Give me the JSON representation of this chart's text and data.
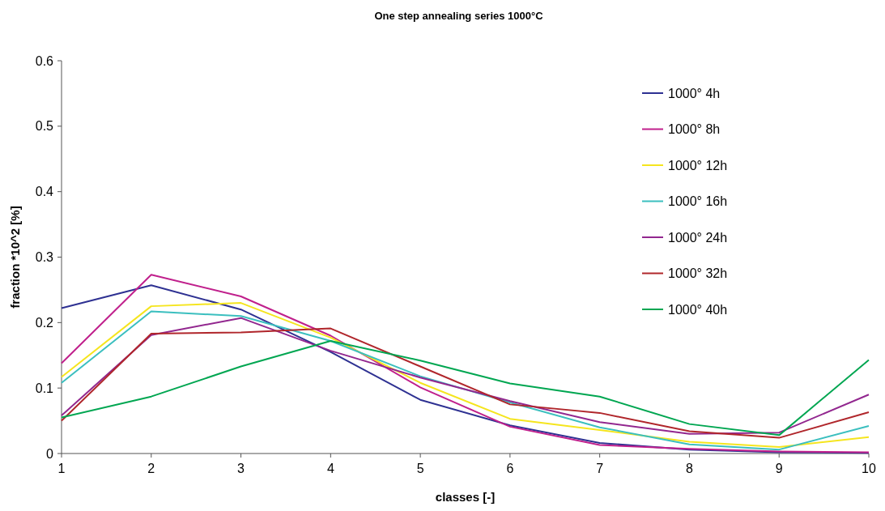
{
  "chart_data": {
    "type": "line",
    "title": "One step annealing series 1000°C",
    "xlabel": "classes [-]",
    "ylabel": "fraction *10^2 [%]",
    "x": [
      1,
      2,
      3,
      4,
      5,
      6,
      7,
      8,
      9,
      10
    ],
    "xlim": [
      1,
      10
    ],
    "xticks": [
      1,
      2,
      3,
      4,
      5,
      6,
      7,
      8,
      9,
      10
    ],
    "ylim": [
      0,
      0.6
    ],
    "yticks": [
      0,
      0.1,
      0.2,
      0.3,
      0.4,
      0.5,
      0.6
    ],
    "grid": false,
    "legend": "top right",
    "marker": "none",
    "line_style": "solid",
    "series": [
      {
        "name": "1000° 4h",
        "color": "#2e3192",
        "values": [
          0.222,
          0.257,
          0.22,
          0.155,
          0.082,
          0.043,
          0.016,
          0.006,
          0.002,
          0.001
        ]
      },
      {
        "name": "1000° 8h",
        "color": "#c0208c",
        "values": [
          0.138,
          0.273,
          0.24,
          0.18,
          0.101,
          0.041,
          0.013,
          0.007,
          0.003,
          0.002
        ]
      },
      {
        "name": "1000° 12h",
        "color": "#f5e51e",
        "values": [
          0.117,
          0.225,
          0.23,
          0.177,
          0.108,
          0.053,
          0.036,
          0.018,
          0.01,
          0.025
        ]
      },
      {
        "name": "1000° 16h",
        "color": "#3bbfbf",
        "values": [
          0.108,
          0.217,
          0.21,
          0.172,
          0.118,
          0.078,
          0.04,
          0.014,
          0.006,
          0.042
        ]
      },
      {
        "name": "1000° 24h",
        "color": "#92278f",
        "values": [
          0.058,
          0.181,
          0.207,
          0.157,
          0.116,
          0.08,
          0.048,
          0.03,
          0.032,
          0.09
        ]
      },
      {
        "name": "1000° 32h",
        "color": "#b0262b",
        "values": [
          0.05,
          0.183,
          0.185,
          0.191,
          0.133,
          0.075,
          0.062,
          0.034,
          0.024,
          0.063
        ]
      },
      {
        "name": "1000° 40h",
        "color": "#00a651",
        "values": [
          0.055,
          0.087,
          0.133,
          0.172,
          0.142,
          0.107,
          0.087,
          0.045,
          0.028,
          0.143
        ]
      }
    ]
  }
}
